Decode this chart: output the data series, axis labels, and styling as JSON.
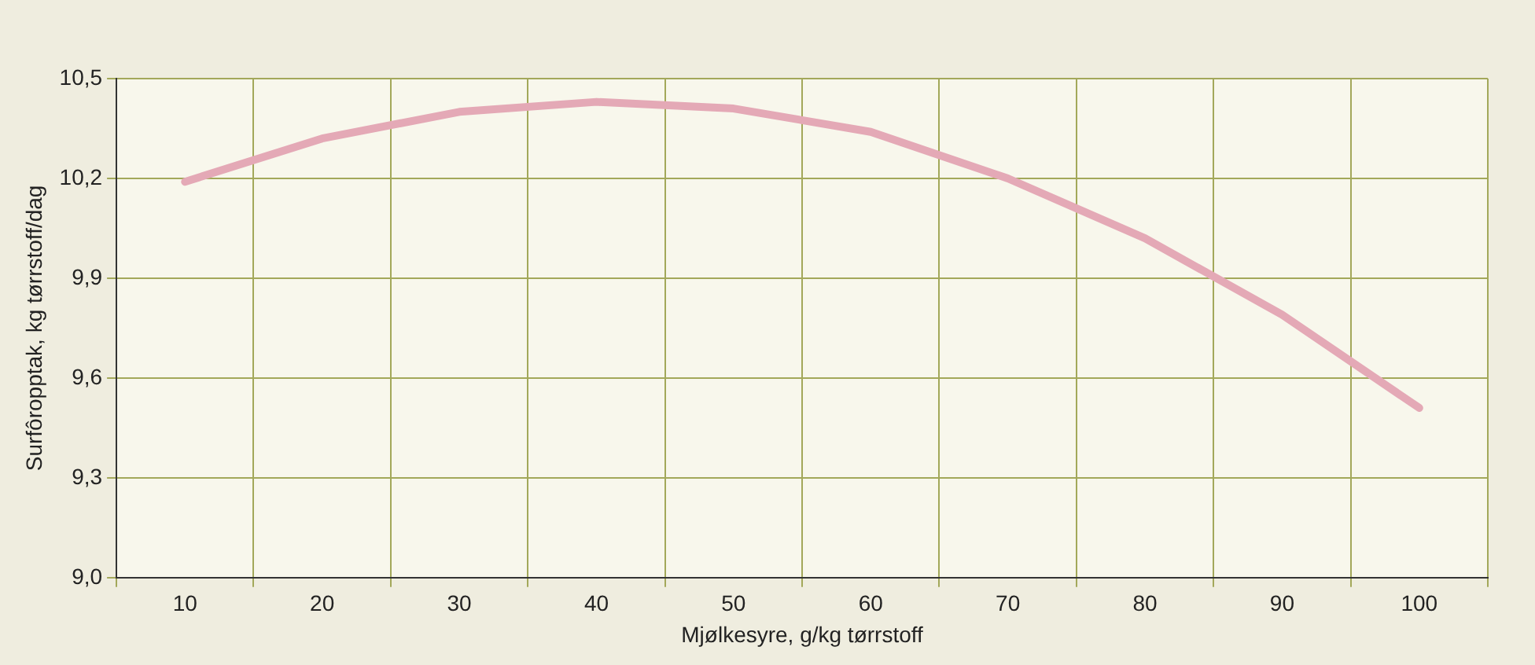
{
  "chart_data": {
    "type": "line",
    "xlabel": "Mjølkesyre, g/kg tørrstoff",
    "ylabel": "Surfôropptak, kg tørrstoff/dag",
    "categories": [
      "10",
      "20",
      "30",
      "40",
      "50",
      "60",
      "70",
      "80",
      "90",
      "100"
    ],
    "series": [
      {
        "color": "#e4a9b6",
        "values": [
          10.19,
          10.32,
          10.4,
          10.43,
          10.41,
          10.34,
          10.2,
          10.02,
          9.79,
          9.51
        ]
      }
    ],
    "ylim": [
      9.0,
      10.5
    ],
    "yticks": [
      {
        "value": 9.0,
        "label": "9,0"
      },
      {
        "value": 9.3,
        "label": "9,3"
      },
      {
        "value": 9.6,
        "label": "9,6"
      },
      {
        "value": 9.9,
        "label": "9,9"
      },
      {
        "value": 10.2,
        "label": "10,2"
      },
      {
        "value": 10.5,
        "label": "10,5"
      }
    ],
    "grid": true,
    "legend": false,
    "marker": "none",
    "line_style": "solid"
  }
}
